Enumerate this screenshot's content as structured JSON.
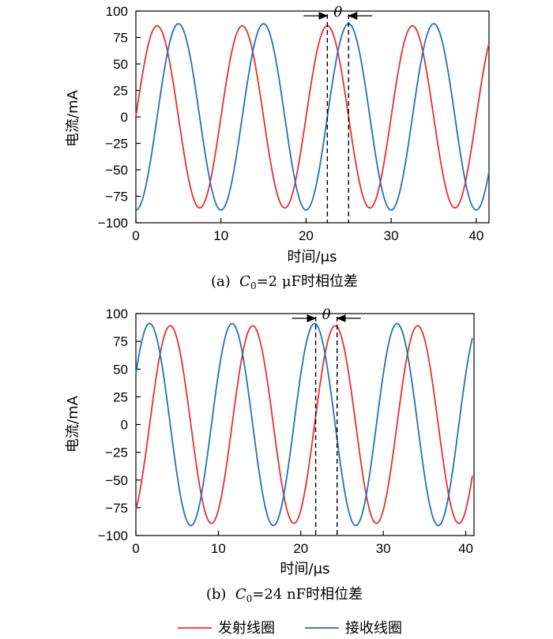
{
  "colors": {
    "tx": "#E8302A",
    "rx": "#1F73B8",
    "axis": "#000000"
  },
  "legend": [
    {
      "label": "发射线圈",
      "color": "#E8302A"
    },
    {
      "label": "接收线圈",
      "color": "#1F73B8"
    }
  ],
  "chart_data": [
    {
      "type": "line",
      "caption": {
        "prefix": "(a)  ",
        "var": "C",
        "sub": "0",
        "rest": "=2 μF时相位差"
      },
      "xlabel": "时间/μs",
      "ylabel": "电流/mA",
      "xlim": [
        0,
        41.5
      ],
      "ylim": [
        -100,
        100
      ],
      "xticks": [
        0,
        10,
        20,
        30,
        40
      ],
      "yticks": [
        100,
        75,
        50,
        25,
        0,
        -25,
        -50,
        -75,
        -100
      ],
      "series": [
        {
          "key": "tx",
          "amplitude": 86,
          "period_us": 10,
          "phase_deg": 0,
          "x_range": [
            0,
            41.5
          ]
        },
        {
          "key": "rx",
          "amplitude": 88,
          "period_us": 10,
          "phase_deg": -90,
          "x_range": [
            0,
            41.5
          ]
        }
      ],
      "annotation": {
        "label": "θ",
        "x_start": 22.5,
        "x_end": 25.0
      }
    },
    {
      "type": "line",
      "caption": {
        "prefix": "(b)  ",
        "var": "C",
        "sub": "0",
        "rest": "=24 nF时相位差"
      },
      "xlabel": "时间/μs",
      "ylabel": "电流/mA",
      "xlim": [
        0,
        41
      ],
      "ylim": [
        -100,
        100
      ],
      "xticks": [
        0,
        10,
        20,
        30,
        40
      ],
      "yticks": [
        100,
        75,
        50,
        25,
        0,
        -25,
        -50,
        -75,
        -100
      ],
      "series": [
        {
          "key": "tx",
          "amplitude": 89,
          "period_us": 10,
          "phase_deg": -60,
          "x_range": [
            0,
            40.8
          ]
        },
        {
          "key": "rx",
          "amplitude": 91,
          "period_us": 10,
          "phase_deg": 30,
          "x_range": [
            0,
            40.8
          ]
        }
      ],
      "annotation": {
        "label": "θ",
        "x_start": 21.8,
        "x_end": 24.4
      }
    }
  ]
}
